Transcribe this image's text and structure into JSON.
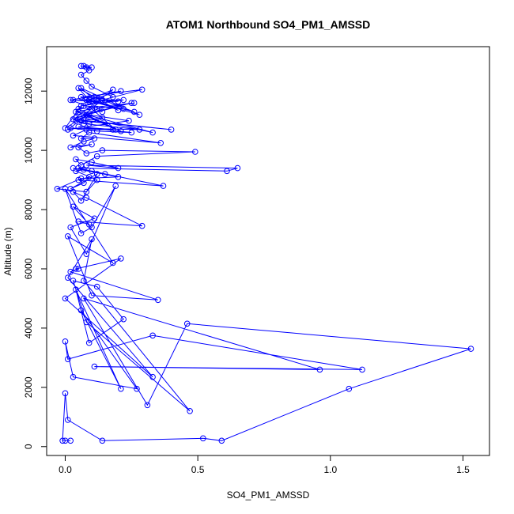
{
  "chart_data": {
    "type": "line",
    "title": "ATOM1 Northbound SO4_PM1_AMSSD",
    "xlabel": "SO4_PM1_AMSSD",
    "ylabel": "Altitude (m)",
    "xlim": [
      -0.07,
      1.6
    ],
    "ylim": [
      -300,
      13500
    ],
    "xticks": [
      0.0,
      0.5,
      1.0,
      1.5
    ],
    "xtick_labels": [
      "0.0",
      "0.5",
      "1.0",
      "1.5"
    ],
    "yticks": [
      0,
      2000,
      4000,
      6000,
      8000,
      10000,
      12000
    ],
    "ytick_labels": [
      "0",
      "2000",
      "4000",
      "6000",
      "8000",
      "10000",
      "12000"
    ],
    "grid": false,
    "legend": "none",
    "markers": "open-circle",
    "series": [
      {
        "color": "#0000ff",
        "x": [
          0.02,
          0.0,
          -0.01,
          0.0,
          0.01,
          0.14,
          0.52,
          0.59,
          1.07,
          1.53,
          0.46,
          0.31,
          0.07,
          0.96,
          0.11,
          1.12,
          0.33,
          0.01,
          0.0,
          0.03,
          0.27,
          0.06,
          0.21,
          0.04,
          0.09,
          0.22,
          0.12,
          0.03,
          0.08,
          0.47,
          0.07,
          0.1,
          0.01,
          0.33,
          0.0,
          0.21,
          0.04,
          0.05,
          0.02,
          0.35,
          0.1,
          0.01,
          0.18,
          0.0,
          0.06,
          0.1,
          0.19,
          0.08,
          0.02,
          0.11,
          0.03,
          0.09,
          0.05,
          0.29,
          0.08,
          0.03,
          0.06,
          0.12,
          0.02,
          0.07,
          0.09,
          0.05,
          0.37,
          0.1,
          0.03,
          0.2,
          0.06,
          -0.03,
          0.08,
          0.12,
          0.04,
          0.07,
          0.15,
          0.05,
          0.61,
          0.65,
          0.08,
          0.2,
          0.1,
          0.04,
          0.06,
          0.12,
          0.49,
          0.14,
          0.08,
          0.05,
          0.1,
          0.02,
          0.07,
          0.11,
          0.06,
          0.09,
          0.36,
          0.03,
          0.08,
          0.18,
          0.05,
          0.25,
          0.12,
          0.02,
          0.28,
          0.07,
          0.04,
          0.09,
          0.14,
          0.06,
          0.4,
          0.03,
          0.08,
          0.21,
          0.05,
          0.19,
          0.1,
          0.04,
          0.33,
          0.07,
          0.01,
          0.24,
          0.09,
          0.05,
          0.26,
          0.12,
          0.0,
          0.06,
          0.22,
          0.09,
          0.03,
          0.2,
          0.11,
          0.26,
          0.08,
          0.06,
          0.29,
          0.14,
          0.07,
          0.25,
          0.04,
          0.18,
          0.09,
          0.21,
          0.02,
          0.14,
          0.08,
          0.28,
          0.06,
          0.11,
          0.2,
          0.05,
          0.09,
          0.22,
          0.07,
          0.18,
          0.1,
          0.08,
          0.06,
          0.09,
          0.07,
          0.1,
          0.08,
          0.06
        ],
        "y": [
          200,
          200,
          200,
          1800,
          900,
          200,
          280,
          200,
          1950,
          3300,
          4150,
          1400,
          5000,
          2600,
          2700,
          2600,
          3750,
          2950,
          3550,
          2350,
          1950,
          4600,
          1950,
          5300,
          3500,
          4300,
          5400,
          5600,
          4200,
          1200,
          5600,
          7000,
          5700,
          2350,
          5000,
          6350,
          6000,
          6000,
          5900,
          4950,
          5100,
          7100,
          6200,
          8700,
          7200,
          7400,
          8800,
          6500,
          7400,
          7700,
          8100,
          7500,
          7600,
          7450,
          8400,
          8600,
          8300,
          9200,
          8700,
          8900,
          9100,
          9000,
          8800,
          9300,
          9400,
          9100,
          9050,
          8700,
          8600,
          9000,
          9300,
          9350,
          9200,
          9400,
          9300,
          9400,
          9500,
          9400,
          9600,
          9700,
          9500,
          9800,
          9950,
          10000,
          9900,
          10100,
          10200,
          10100,
          10300,
          10400,
          10400,
          10600,
          10250,
          10500,
          10700,
          10700,
          10800,
          10600,
          10650,
          10750,
          10700,
          10900,
          11000,
          10900,
          11100,
          11000,
          10700,
          11050,
          11200,
          10650,
          11300,
          10700,
          11400,
          11300,
          10600,
          11100,
          10700,
          11000,
          11200,
          11400,
          11600,
          11400,
          10750,
          11500,
          11700,
          11650,
          11700,
          11650,
          11800,
          11300,
          11700,
          11800,
          12050,
          11700,
          11200,
          11600,
          11100,
          12050,
          11700,
          12000,
          11700,
          11300,
          11700,
          11200,
          12100,
          11700,
          11350,
          12100,
          11700,
          11400,
          11500,
          11800,
          12150,
          12350,
          12550,
          12700,
          12850,
          12800,
          12800,
          12850
        ]
      }
    ]
  }
}
